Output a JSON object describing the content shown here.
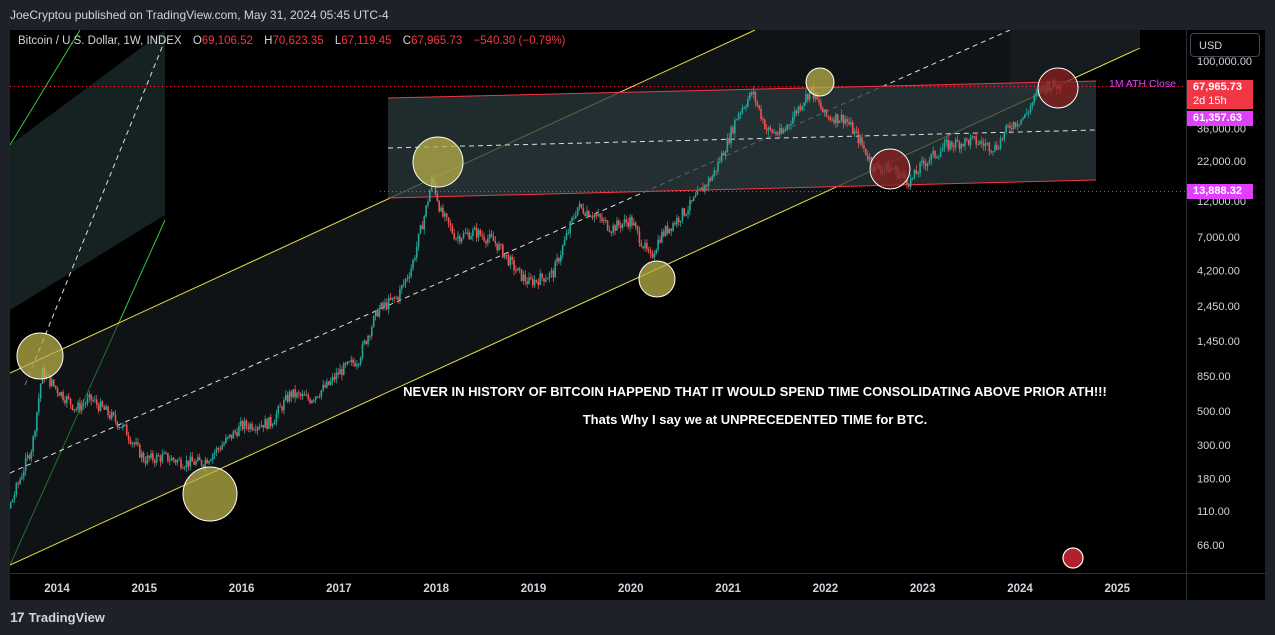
{
  "header": {
    "publisher_line": "JoeCryptou published on TradingView.com, May 31, 2024 05:45 UTC-4"
  },
  "legend": {
    "symbol": "Bitcoin / U.S. Dollar, 1W, INDEX",
    "o_label": "O",
    "o_value": "69,106.52",
    "h_label": "H",
    "h_value": "70,623.35",
    "l_label": "L",
    "l_value": "67,119.45",
    "c_label": "C",
    "c_value": "67,965.73",
    "change": "−540.30 (−0.79%)"
  },
  "currency_button": "USD",
  "annotations": {
    "line1": "NEVER IN HISTORY OF BITCOIN HAPPEND THAT IT WOULD SPEND TIME CONSOLIDATING ABOVE PRIOR ATH!!!",
    "line2": "Thats Why I say we at UNPRECEDENTED TIME for BTC.",
    "ath_label": "1M ATH Close"
  },
  "price_tags": {
    "current": "67,965.73",
    "countdown": "2d 15h",
    "level_pink1": "61,357.63",
    "level_pink2": "13,888.32"
  },
  "footer": {
    "brand": "TradingView",
    "logo": "17"
  },
  "colors": {
    "up": "#26a69a",
    "down": "#ef5350",
    "yellow_channel": "#e6e04a",
    "green_channel": "#2ecc40",
    "red_box": "#f23645",
    "pink": "#e040fb"
  },
  "chart_data": {
    "type": "candlestick",
    "title": "Bitcoin / U.S. Dollar, 1W, INDEX",
    "y_scale": "log",
    "y_ticks": [
      "100,000.00",
      "36,000.00",
      "22,000.00",
      "12,000.00",
      "7,000.00",
      "4,200.00",
      "2,450.00",
      "1,450.00",
      "850.00",
      "500.00",
      "300.00",
      "180.00",
      "110.00",
      "66.00"
    ],
    "y_tick_values": [
      100000,
      36000,
      22000,
      12000,
      7000,
      4200,
      2450,
      1450,
      850,
      500,
      300,
      180,
      110,
      66
    ],
    "x_ticks": [
      "2014",
      "2015",
      "2016",
      "2017",
      "2018",
      "2019",
      "2020",
      "2021",
      "2022",
      "2023",
      "2024",
      "2025"
    ],
    "x_tick_years": [
      2014,
      2015,
      2016,
      2017,
      2018,
      2019,
      2020,
      2021,
      2022,
      2023,
      2024,
      2025
    ],
    "price_path": [
      [
        2013.3,
        90
      ],
      [
        2013.6,
        110
      ],
      [
        2013.85,
        300
      ],
      [
        2013.95,
        900
      ],
      [
        2014.1,
        700
      ],
      [
        2014.3,
        520
      ],
      [
        2014.45,
        600
      ],
      [
        2014.6,
        500
      ],
      [
        2014.8,
        380
      ],
      [
        2015.0,
        240
      ],
      [
        2015.2,
        250
      ],
      [
        2015.4,
        230
      ],
      [
        2015.6,
        230
      ],
      [
        2015.8,
        300
      ],
      [
        2016.0,
        400
      ],
      [
        2016.3,
        420
      ],
      [
        2016.5,
        650
      ],
      [
        2016.7,
        600
      ],
      [
        2016.9,
        750
      ],
      [
        2017.0,
        900
      ],
      [
        2017.2,
        1100
      ],
      [
        2017.4,
        2300
      ],
      [
        2017.6,
        2800
      ],
      [
        2017.75,
        4500
      ],
      [
        2017.9,
        11000
      ],
      [
        2017.96,
        17000
      ],
      [
        2018.05,
        10000
      ],
      [
        2018.2,
        7000
      ],
      [
        2018.4,
        7500
      ],
      [
        2018.6,
        6500
      ],
      [
        2018.85,
        4000
      ],
      [
        2018.95,
        3500
      ],
      [
        2019.2,
        4000
      ],
      [
        2019.45,
        11000
      ],
      [
        2019.6,
        10000
      ],
      [
        2019.8,
        8000
      ],
      [
        2020.0,
        9000
      ],
      [
        2020.2,
        5000
      ],
      [
        2020.3,
        7000
      ],
      [
        2020.6,
        11000
      ],
      [
        2020.85,
        18000
      ],
      [
        2021.0,
        30000
      ],
      [
        2021.1,
        45000
      ],
      [
        2021.25,
        62000
      ],
      [
        2021.4,
        35000
      ],
      [
        2021.55,
        33000
      ],
      [
        2021.7,
        47000
      ],
      [
        2021.85,
        65000
      ],
      [
        2022.0,
        43000
      ],
      [
        2022.2,
        42000
      ],
      [
        2022.35,
        30000
      ],
      [
        2022.5,
        20000
      ],
      [
        2022.7,
        19500
      ],
      [
        2022.87,
        16000
      ],
      [
        2023.0,
        21000
      ],
      [
        2023.25,
        28000
      ],
      [
        2023.5,
        30000
      ],
      [
        2023.75,
        27000
      ],
      [
        2023.9,
        38000
      ],
      [
        2024.05,
        43000
      ],
      [
        2024.2,
        65000
      ],
      [
        2024.3,
        70000
      ],
      [
        2024.42,
        67966
      ]
    ],
    "levels": {
      "ath_close_1m": 67965.73,
      "level_a": 61357.63,
      "level_b": 13888.32
    },
    "ylim": [
      50,
      140000
    ],
    "xlim": [
      2013.4,
      2025.5
    ]
  }
}
